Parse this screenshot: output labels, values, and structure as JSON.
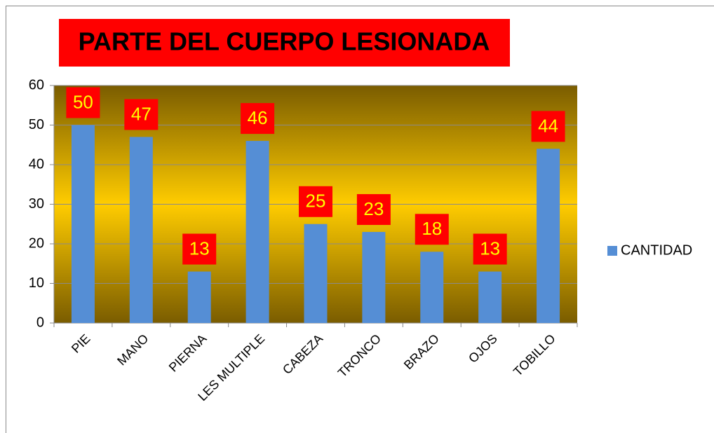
{
  "chart_data": {
    "type": "bar",
    "title": "PARTE DEL CUERPO LESIONADA",
    "categories": [
      "PIE",
      "MANO",
      "PIERNA",
      "LES MULTIPLE",
      "CABEZA",
      "TRONCO",
      "BRAZO",
      "OJOS",
      "TOBILLO"
    ],
    "series": [
      {
        "name": "CANTIDAD",
        "color": "#558ed5",
        "values": [
          50,
          47,
          13,
          46,
          25,
          23,
          18,
          13,
          44
        ]
      }
    ],
    "ylim": [
      0,
      60
    ],
    "yticks": [
      0,
      10,
      20,
      30,
      40,
      50,
      60
    ],
    "grid": true,
    "legend": "right"
  }
}
